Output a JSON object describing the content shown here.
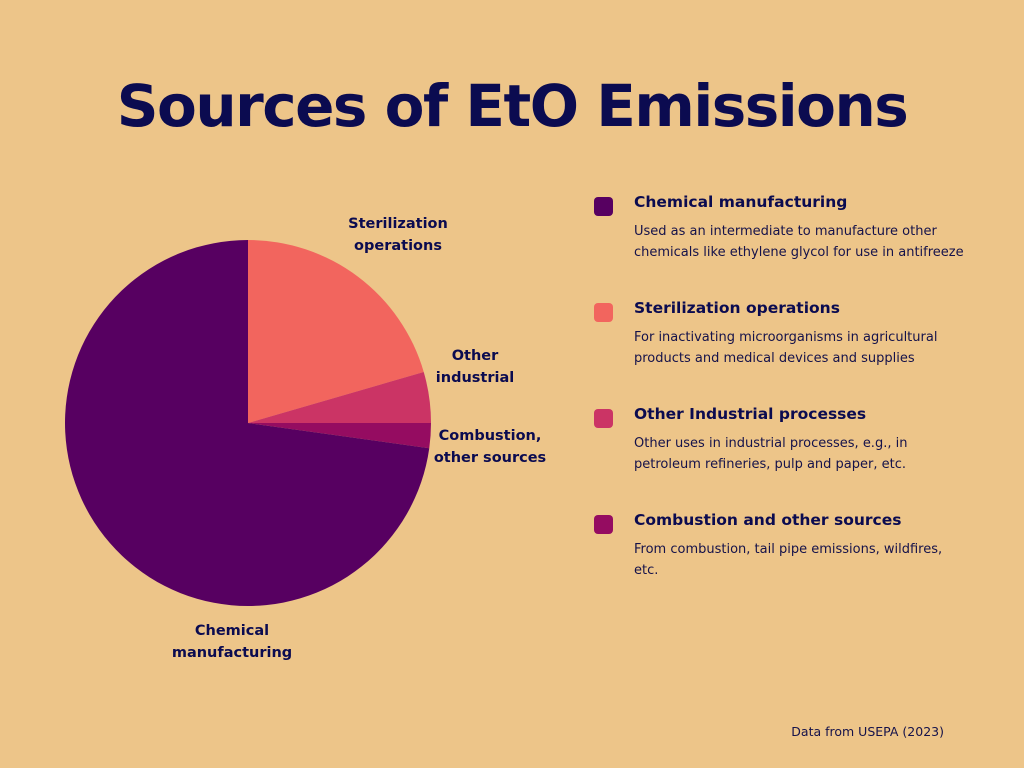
{
  "chart_data": {
    "type": "pie",
    "title": "Sources of EtO Emissions",
    "start_angle_deg": 0,
    "direction": "clockwise",
    "slices": [
      {
        "key": "sterilization",
        "label": "Sterilization\noperations",
        "value": 20.5,
        "color": "#F2655E"
      },
      {
        "key": "other-industrial",
        "label": "Other\nindustrial",
        "value": 4.5,
        "color": "#CB3465"
      },
      {
        "key": "combustion",
        "label": "Combustion,\nother sources",
        "value": 2.2,
        "color": "#950C61"
      },
      {
        "key": "chemical-manufacturing",
        "label": "Chemical\nmanufacturing",
        "value": 72.8,
        "color": "#570061"
      }
    ]
  },
  "legend": [
    {
      "name": "Chemical manufacturing",
      "color": "#570061",
      "description": "Used as an intermediate to manufacture other chemicals like ethylene glycol for use in antifreeze"
    },
    {
      "name": "Sterilization operations",
      "color": "#F2655E",
      "description": "For inactivating microorganisms in agricultural products and medical devices and supplies"
    },
    {
      "name": "Other Industrial processes",
      "color": "#CB3465",
      "description": "Other uses in industrial  processes, e.g., in petroleum refineries, pulp and paper, etc."
    },
    {
      "name": "Combustion and other sources",
      "color": "#950C61",
      "description": "From combustion, tail pipe emissions, wildfires, etc."
    }
  ],
  "source_note": "Data from USEPA (2023)"
}
